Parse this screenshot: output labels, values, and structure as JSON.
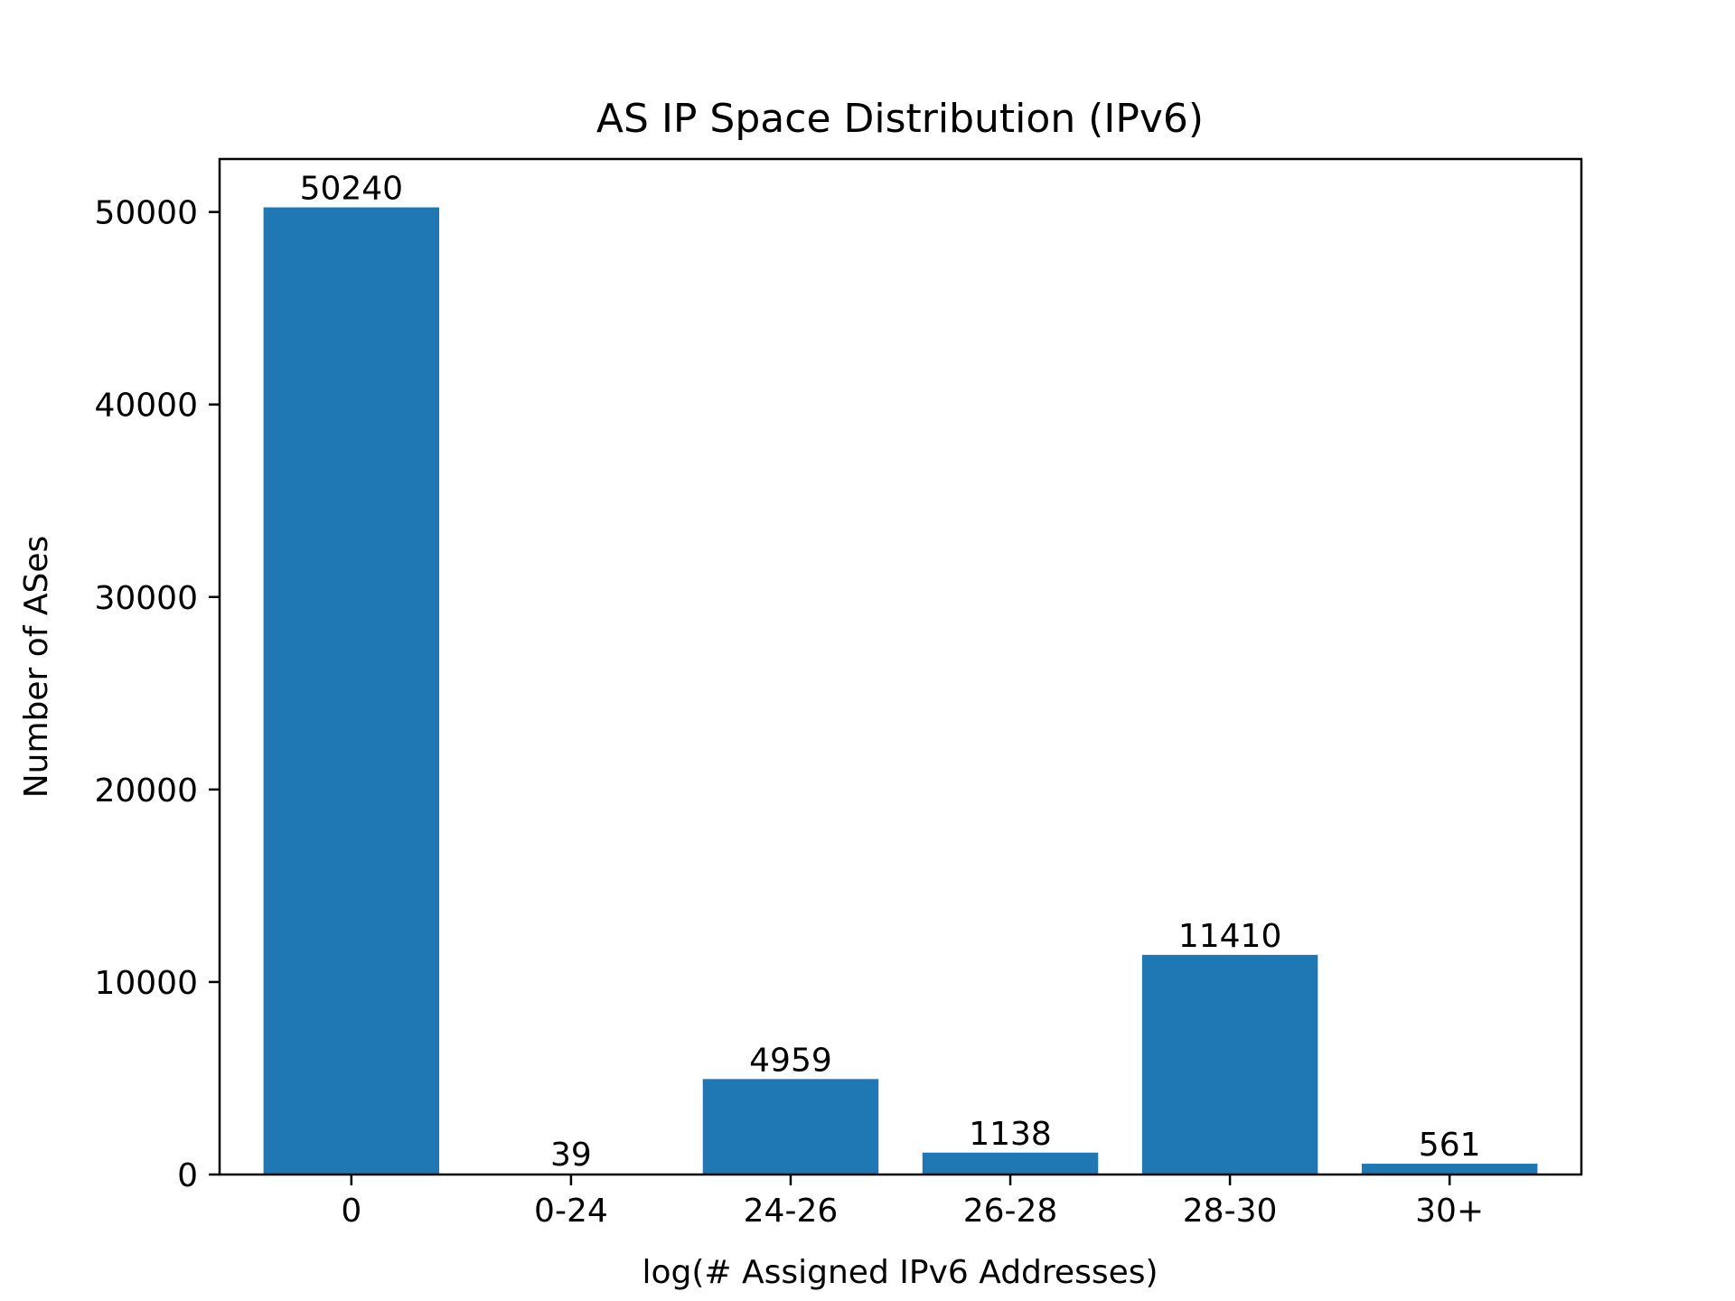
{
  "chart_data": {
    "type": "bar",
    "title": "AS IP Space Distribution (IPv6)",
    "xlabel": "log(# Assigned IPv6 Addresses)",
    "ylabel": "Number of ASes",
    "categories": [
      "0",
      "0-24",
      "24-26",
      "26-28",
      "28-30",
      "30+"
    ],
    "values": [
      50240,
      39,
      4959,
      1138,
      11410,
      561
    ],
    "value_labels": [
      "50240",
      "39",
      "4959",
      "1138",
      "11410",
      "561"
    ],
    "ylim": [
      0,
      52752
    ],
    "yticks": [
      0,
      10000,
      20000,
      30000,
      40000,
      50000
    ],
    "ytick_labels": [
      "0",
      "10000",
      "20000",
      "30000",
      "40000",
      "50000"
    ],
    "bar_color": "#1f77b4",
    "grid": false,
    "legend": "none"
  }
}
